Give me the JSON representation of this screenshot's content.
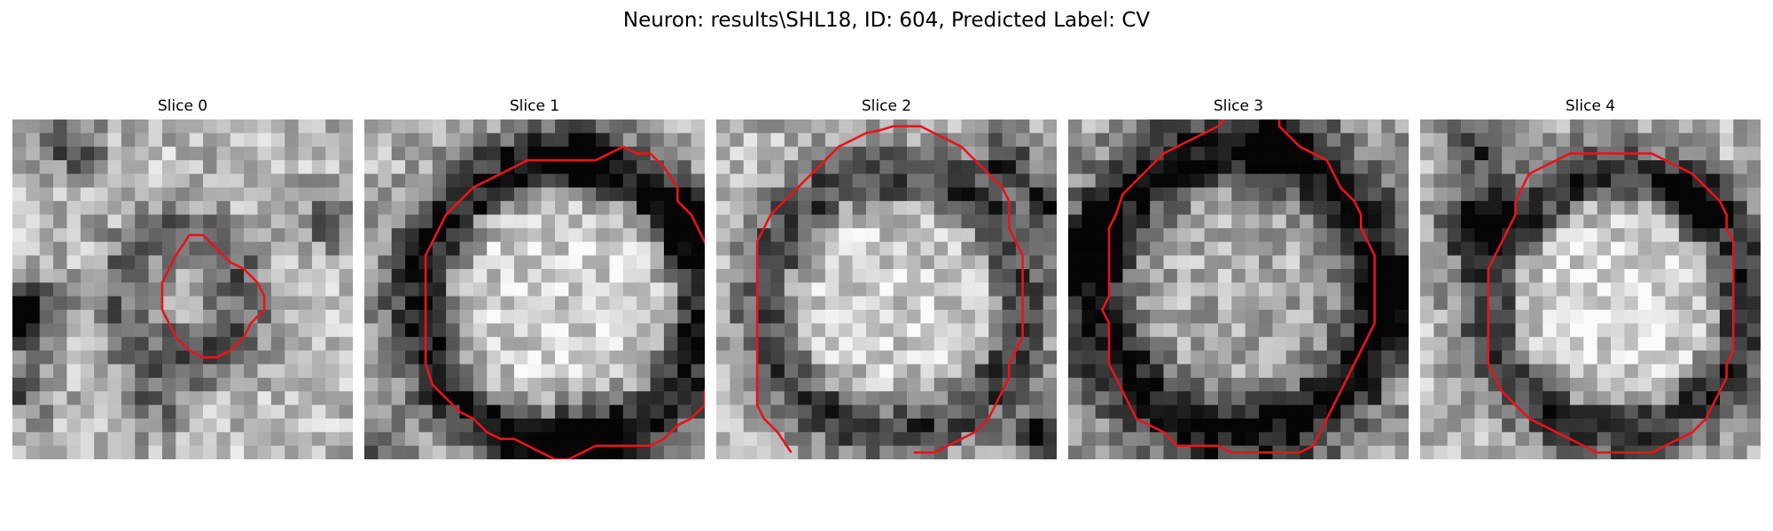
{
  "figure": {
    "title": "Neuron: results\\SHL18, ID: 604, Predicted Label: CV",
    "contour_color": "#e8141b"
  },
  "slices": [
    {
      "title": "Slice 0",
      "contour": [
        [
          13,
          8.5
        ],
        [
          14,
          8.5
        ],
        [
          15,
          9.5
        ],
        [
          16,
          10.5
        ],
        [
          17,
          11
        ],
        [
          18,
          12
        ],
        [
          18.5,
          13
        ],
        [
          18.5,
          14
        ],
        [
          17.5,
          15
        ],
        [
          17,
          16
        ],
        [
          16,
          17
        ],
        [
          15,
          17.5
        ],
        [
          14,
          17.5
        ],
        [
          13,
          17
        ],
        [
          12,
          16
        ],
        [
          11.5,
          15
        ],
        [
          11,
          14
        ],
        [
          11,
          12
        ],
        [
          11.5,
          11
        ],
        [
          12,
          10
        ]
      ],
      "contour_closed": true
    },
    {
      "title": "Slice 1",
      "contour": [
        [
          15,
          3
        ],
        [
          17,
          3
        ],
        [
          18,
          2.5
        ],
        [
          19,
          2
        ],
        [
          20,
          2.5
        ],
        [
          21,
          2.5
        ],
        [
          22,
          3.5
        ],
        [
          23,
          5
        ],
        [
          23,
          6
        ],
        [
          24,
          7
        ],
        [
          24.5,
          8
        ],
        [
          25,
          9
        ],
        [
          25.5,
          10
        ],
        [
          25.5,
          11
        ],
        [
          26,
          12
        ],
        [
          26,
          13
        ],
        [
          26,
          14
        ],
        [
          26,
          15
        ],
        [
          26.5,
          16.2
        ],
        [
          26,
          17
        ],
        [
          25.5,
          18
        ],
        [
          25.5,
          19
        ],
        [
          25,
          20
        ],
        [
          25,
          21
        ],
        [
          24,
          22
        ],
        [
          23,
          22.5
        ],
        [
          22,
          23.5
        ],
        [
          21,
          24
        ],
        [
          20,
          24
        ],
        [
          19,
          24
        ],
        [
          18,
          24
        ],
        [
          17,
          24
        ],
        [
          16,
          24.5
        ],
        [
          15,
          25
        ],
        [
          14,
          25
        ],
        [
          13,
          24.5
        ],
        [
          12,
          24
        ],
        [
          11,
          23.5
        ],
        [
          10,
          23.5
        ],
        [
          9,
          23
        ],
        [
          8,
          22
        ],
        [
          7,
          21.5
        ],
        [
          6,
          20.5
        ],
        [
          5,
          19.5
        ],
        [
          4.5,
          18
        ],
        [
          4.5,
          16
        ],
        [
          4.5,
          14
        ],
        [
          4.5,
          12
        ],
        [
          4.5,
          10
        ],
        [
          5,
          9
        ],
        [
          5.5,
          8
        ],
        [
          6,
          7
        ],
        [
          7,
          6
        ],
        [
          8,
          5
        ],
        [
          9,
          4.5
        ],
        [
          10,
          4
        ],
        [
          11,
          3.5
        ],
        [
          12,
          3
        ],
        [
          13,
          3
        ]
      ],
      "contour_closed": true
    },
    {
      "title": "Slice 2",
      "contour": [
        [
          5.5,
          24.5
        ],
        [
          4.5,
          23
        ],
        [
          3.5,
          22
        ],
        [
          3,
          21
        ],
        [
          3,
          19
        ],
        [
          3,
          17
        ],
        [
          3,
          15
        ],
        [
          3,
          13
        ],
        [
          3,
          11
        ],
        [
          3,
          9
        ],
        [
          3.5,
          8
        ],
        [
          4,
          7
        ],
        [
          5,
          6
        ],
        [
          6,
          5
        ],
        [
          7,
          4
        ],
        [
          8,
          3
        ],
        [
          9,
          2
        ],
        [
          10,
          1.5
        ],
        [
          11,
          1
        ],
        [
          12,
          0.8
        ],
        [
          13,
          0.5
        ],
        [
          14,
          0.5
        ],
        [
          15,
          0.5
        ],
        [
          16,
          1
        ],
        [
          17,
          1.5
        ],
        [
          18,
          2
        ],
        [
          19,
          3
        ],
        [
          20,
          4
        ],
        [
          21,
          5
        ],
        [
          21.5,
          6
        ],
        [
          21.5,
          7
        ],
        [
          21.5,
          8
        ],
        [
          22,
          9
        ],
        [
          22.5,
          10
        ],
        [
          22.5,
          11
        ],
        [
          22.5,
          12
        ],
        [
          22.5,
          13
        ],
        [
          22.5,
          14
        ],
        [
          22.5,
          15
        ],
        [
          22.5,
          16
        ],
        [
          22,
          17
        ],
        [
          21.5,
          18
        ],
        [
          21.5,
          19
        ],
        [
          21,
          20
        ],
        [
          20.5,
          21
        ],
        [
          20,
          22
        ],
        [
          19,
          23
        ],
        [
          18,
          23.5
        ],
        [
          17,
          24
        ],
        [
          16,
          24.5
        ],
        [
          14.5,
          24.5
        ]
      ],
      "contour_closed": false
    },
    {
      "title": "Slice 3",
      "contour": [
        [
          11.5,
          0
        ],
        [
          11,
          0.5
        ],
        [
          10,
          1
        ],
        [
          9,
          1.5
        ],
        [
          8,
          2
        ],
        [
          7,
          2.5
        ],
        [
          6,
          3.5
        ],
        [
          5,
          4.5
        ],
        [
          4,
          5.5
        ],
        [
          3.5,
          7
        ],
        [
          3,
          8
        ],
        [
          3,
          10
        ],
        [
          3,
          12
        ],
        [
          3,
          13
        ],
        [
          2.5,
          14
        ],
        [
          3,
          15
        ],
        [
          3,
          17
        ],
        [
          3,
          18
        ],
        [
          3.5,
          19
        ],
        [
          4,
          20
        ],
        [
          4.5,
          21
        ],
        [
          5,
          22
        ],
        [
          6,
          22.5
        ],
        [
          7,
          23
        ],
        [
          8,
          24
        ],
        [
          9,
          24
        ],
        [
          10,
          24
        ],
        [
          11,
          24
        ],
        [
          12,
          24.5
        ],
        [
          13,
          24.5
        ],
        [
          14,
          24.5
        ],
        [
          15,
          24.5
        ],
        [
          16,
          24.5
        ],
        [
          17,
          24.5
        ],
        [
          18,
          24
        ],
        [
          18.5,
          23
        ],
        [
          19,
          22
        ],
        [
          19.5,
          21
        ],
        [
          20,
          20
        ],
        [
          20.5,
          19
        ],
        [
          21,
          18
        ],
        [
          21.5,
          17
        ],
        [
          22,
          16
        ],
        [
          22.5,
          15
        ],
        [
          22.5,
          13
        ],
        [
          22.5,
          11
        ],
        [
          22.5,
          10
        ],
        [
          22,
          9
        ],
        [
          21.5,
          8
        ],
        [
          21.5,
          7
        ],
        [
          21,
          6
        ],
        [
          20,
          5
        ],
        [
          19.5,
          4
        ],
        [
          19,
          3
        ],
        [
          18,
          2.5
        ],
        [
          17,
          2
        ],
        [
          16.5,
          1.5
        ],
        [
          16,
          1
        ],
        [
          15.5,
          0.5
        ],
        [
          15.5,
          0
        ]
      ],
      "contour_closed": false
    },
    {
      "title": "Slice 4",
      "contour": [
        [
          13,
          2.5
        ],
        [
          14,
          2.5
        ],
        [
          15,
          2.5
        ],
        [
          16,
          2.5
        ],
        [
          17,
          2.5
        ],
        [
          18,
          3
        ],
        [
          19,
          3.5
        ],
        [
          20,
          4
        ],
        [
          21,
          5
        ],
        [
          22,
          6
        ],
        [
          22.5,
          7
        ],
        [
          22.5,
          8
        ],
        [
          23,
          9
        ],
        [
          23,
          11
        ],
        [
          23,
          13
        ],
        [
          23,
          15
        ],
        [
          23,
          17
        ],
        [
          22.5,
          18
        ],
        [
          22.5,
          19
        ],
        [
          22,
          20
        ],
        [
          21.5,
          21
        ],
        [
          21,
          22
        ],
        [
          20,
          23
        ],
        [
          19,
          23.5
        ],
        [
          18,
          24
        ],
        [
          17,
          24.5
        ],
        [
          16,
          24.5
        ],
        [
          15,
          24.5
        ],
        [
          14,
          24.5
        ],
        [
          13,
          24.5
        ],
        [
          12,
          24
        ],
        [
          11,
          23.5
        ],
        [
          10,
          23
        ],
        [
          9,
          22.5
        ],
        [
          8,
          22
        ],
        [
          7,
          21
        ],
        [
          6,
          20
        ],
        [
          5.5,
          19
        ],
        [
          5,
          18
        ],
        [
          5,
          16
        ],
        [
          5,
          14
        ],
        [
          5,
          12
        ],
        [
          5,
          11
        ],
        [
          5.5,
          10
        ],
        [
          6,
          9
        ],
        [
          6.5,
          8
        ],
        [
          7,
          7
        ],
        [
          7,
          6
        ],
        [
          7.5,
          5
        ],
        [
          8,
          4
        ],
        [
          9,
          3.5
        ],
        [
          10,
          3
        ],
        [
          11,
          2.5
        ],
        [
          12,
          2.5
        ]
      ],
      "contour_closed": true
    }
  ]
}
